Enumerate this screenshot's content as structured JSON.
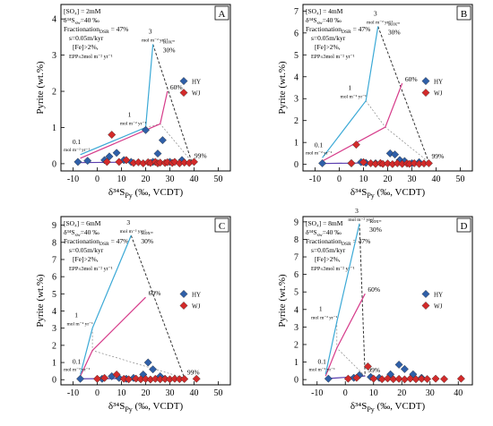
{
  "figure": {
    "ylabel": "Pyrite (wt.%)",
    "xlabel": "δ³⁴S",
    "xlabel_sub": "Py",
    "xlabel_unit": " (‰, VCDT)"
  },
  "colors": {
    "hy_marker": "#2f5fa8",
    "wj_marker": "#d32a2a",
    "cyan_line": "#3ba9d6",
    "magenta_line": "#d63b8a",
    "purple_line": "#5b3fb0",
    "dashed_line": "#333333",
    "label_box": "#000000"
  },
  "legend": [
    {
      "name": "HY",
      "color": "#2f5fa8"
    },
    {
      "name": "WJ",
      "color": "#d32a2a"
    }
  ],
  "chart_data": [
    {
      "panel": "A",
      "type": "scatter",
      "xlim": [
        -15,
        55
      ],
      "ylim": [
        -0.2,
        4.4
      ],
      "xticks": [
        -10,
        0,
        10,
        20,
        30,
        40,
        50
      ],
      "yticks": [
        0,
        1,
        2,
        3,
        4
      ],
      "params": [
        "[SO₄] = 2mM",
        "δ³⁴S",
        "sw",
        "=40 ‰",
        "Fractionation",
        "DSR",
        " = 47%",
        "s=0.05m/kyr",
        "[Fe]>2%,",
        "EPP≤3mol m⁻² yr⁻¹"
      ],
      "annotations": {
        "rate_hi": "3",
        "rate_mid": "1",
        "rate_lo": "0.1",
        "rate_unit": "mol m⁻² yr⁻¹",
        "rox_label": "Rox=",
        "rox_30": "30%",
        "rox_60": "60%",
        "rox_99": "99%"
      },
      "model_curves": {
        "cyan": [
          [
            -7,
            0.25
          ],
          [
            20,
            1.0
          ],
          [
            23,
            3.3
          ]
        ],
        "magenta": [
          [
            -7,
            0.15
          ],
          [
            26,
            1.1
          ],
          [
            29,
            2.0
          ]
        ],
        "purple": [
          [
            -7,
            0.03
          ],
          [
            39,
            0.06
          ]
        ],
        "dashed": [
          [
            23,
            3.3
          ],
          [
            39,
            0.06
          ]
        ]
      },
      "series": [
        {
          "name": "HY",
          "points": [
            [
              -8,
              0.05
            ],
            [
              -4,
              0.08
            ],
            [
              3,
              0.1
            ],
            [
              5,
              0.2
            ],
            [
              8,
              0.3
            ],
            [
              11,
              0.1
            ],
            [
              14,
              0.05
            ],
            [
              20,
              0.93
            ],
            [
              23,
              0.05
            ],
            [
              25,
              0.28
            ],
            [
              27,
              0.65
            ],
            [
              30,
              0.05
            ],
            [
              35,
              0.1
            ]
          ]
        },
        {
          "name": "WJ",
          "points": [
            [
              4,
              0.05
            ],
            [
              6,
              0.8
            ],
            [
              9,
              0.05
            ],
            [
              12,
              0.1
            ],
            [
              15,
              0.02
            ],
            [
              17,
              0.04
            ],
            [
              19,
              0.01
            ],
            [
              21,
              0.04
            ],
            [
              22,
              0.02
            ],
            [
              24,
              0.05
            ],
            [
              25,
              0.01
            ],
            [
              26,
              0.03
            ],
            [
              28,
              0.02
            ],
            [
              29,
              0.04
            ],
            [
              31,
              0.02
            ],
            [
              32,
              0.05
            ],
            [
              34,
              0.01
            ],
            [
              36,
              0.03
            ],
            [
              38,
              0.02
            ],
            [
              40,
              0.05
            ]
          ]
        }
      ]
    },
    {
      "panel": "B",
      "type": "scatter",
      "xlim": [
        -15,
        55
      ],
      "ylim": [
        -0.3,
        7.3
      ],
      "xticks": [
        -10,
        0,
        10,
        20,
        30,
        40,
        50
      ],
      "yticks": [
        0,
        1,
        2,
        3,
        4,
        5,
        6,
        7
      ],
      "params": [
        "[SO₄] = 4mM",
        "δ³⁴S",
        "sw",
        "=40 ‰",
        "Fractionation",
        "DSR",
        " = 47%",
        "s=0.05m/kyr",
        "[Fe]>2%,",
        "EPP≤3mol m⁻² yr⁻¹"
      ],
      "annotations": {
        "rate_hi": "3",
        "rate_mid": "1",
        "rate_lo": "0.1",
        "rate_unit": "mol m⁻² yr⁻¹",
        "rox_label": "Rox=",
        "rox_30": "30%",
        "rox_60": "60%",
        "rox_99": "99%"
      },
      "model_curves": {
        "cyan": [
          [
            -7,
            0.3
          ],
          [
            11,
            2.9
          ],
          [
            16,
            6.3
          ]
        ],
        "magenta": [
          [
            -7,
            0.15
          ],
          [
            19,
            1.7
          ],
          [
            26,
            3.7
          ]
        ],
        "purple": [
          [
            -7,
            0.04
          ],
          [
            37,
            0.1
          ]
        ],
        "dashed": [
          [
            16,
            6.3
          ],
          [
            37,
            0.1
          ]
        ]
      },
      "series": [
        {
          "name": "HY",
          "points": [
            [
              -7,
              0.05
            ],
            [
              5,
              0.05
            ],
            [
              9,
              0.1
            ],
            [
              11,
              0.07
            ],
            [
              15,
              0.05
            ],
            [
              21,
              0.5
            ],
            [
              23,
              0.45
            ],
            [
              25,
              0.2
            ],
            [
              27,
              0.15
            ],
            [
              30,
              0.05
            ],
            [
              33,
              0.1
            ]
          ]
        },
        {
          "name": "WJ",
          "points": [
            [
              5,
              0.05
            ],
            [
              7,
              0.9
            ],
            [
              10,
              0.1
            ],
            [
              13,
              0.05
            ],
            [
              15,
              0.02
            ],
            [
              17,
              0.06
            ],
            [
              18,
              0.02
            ],
            [
              20,
              0.04
            ],
            [
              22,
              0.01
            ],
            [
              24,
              0.05
            ],
            [
              26,
              0.02
            ],
            [
              28,
              0.04
            ],
            [
              29,
              0.02
            ],
            [
              31,
              0.05
            ],
            [
              33,
              0.02
            ],
            [
              35,
              0.04
            ],
            [
              37,
              0.05
            ]
          ]
        }
      ]
    },
    {
      "panel": "C",
      "type": "scatter",
      "xlim": [
        -15,
        55
      ],
      "ylim": [
        -0.3,
        9.5
      ],
      "xticks": [
        -10,
        0,
        10,
        20,
        30,
        40,
        50
      ],
      "yticks": [
        0,
        1,
        2,
        3,
        4,
        5,
        6,
        7,
        8,
        9
      ],
      "params": [
        "[SO₄] = 6mM",
        "δ³⁴S",
        "sw",
        "=40 ‰",
        "Fractionation",
        "DSR",
        " = 47%",
        "s=0.05m/kyr",
        "[Fe]>2%,",
        "EPP≤3mol m⁻² yr⁻¹"
      ],
      "annotations": {
        "rate_hi": "3",
        "rate_mid": "1",
        "rate_lo": "0.1",
        "rate_unit": "mol m⁻² yr⁻¹",
        "rox_label": "Rox=",
        "rox_30": "30%",
        "rox_60": "60%",
        "rox_99": "99%"
      },
      "model_curves": {
        "cyan": [
          [
            -7,
            0.3
          ],
          [
            -2,
            3.0
          ],
          [
            14,
            8.4
          ]
        ],
        "magenta": [
          [
            -7,
            0.2
          ],
          [
            -2,
            1.7
          ],
          [
            20,
            4.8
          ]
        ],
        "purple": [
          [
            -7,
            0.05
          ],
          [
            36,
            0.1
          ]
        ],
        "dashed": [
          [
            14,
            8.4
          ],
          [
            36,
            0.1
          ]
        ]
      },
      "series": [
        {
          "name": "HY",
          "points": [
            [
              -7,
              0.05
            ],
            [
              2,
              0.05
            ],
            [
              6,
              0.2
            ],
            [
              9,
              0.1
            ],
            [
              12,
              0.05
            ],
            [
              15,
              0.1
            ],
            [
              19,
              0.3
            ],
            [
              21,
              1.0
            ],
            [
              23,
              0.6
            ],
            [
              26,
              0.2
            ],
            [
              28,
              0.05
            ]
          ]
        },
        {
          "name": "WJ",
          "points": [
            [
              0,
              0.05
            ],
            [
              3,
              0.1
            ],
            [
              8,
              0.3
            ],
            [
              11,
              0.05
            ],
            [
              13,
              0.02
            ],
            [
              16,
              0.06
            ],
            [
              18,
              0.02
            ],
            [
              20,
              0.04
            ],
            [
              22,
              0.01
            ],
            [
              24,
              0.05
            ],
            [
              26,
              0.02
            ],
            [
              28,
              0.04
            ],
            [
              30,
              0.02
            ],
            [
              32,
              0.05
            ],
            [
              34,
              0.03
            ],
            [
              36,
              0.04
            ],
            [
              41,
              0.05
            ]
          ]
        }
      ]
    },
    {
      "panel": "D",
      "type": "scatter",
      "xlim": [
        -15,
        45
      ],
      "ylim": [
        -0.3,
        9.3
      ],
      "xticks": [
        -10,
        0,
        10,
        20,
        30,
        40
      ],
      "yticks": [
        0,
        1,
        2,
        3,
        4,
        5,
        6,
        7,
        8,
        9
      ],
      "params": [
        "[SO₄] = 8mM",
        "δ³⁴S",
        "sw",
        "=40 ‰",
        "Fractionation",
        "DSR",
        " = 47%",
        "s=0.05m/kyr",
        "[Fe]>2%,",
        "EPP≤3mol m⁻² yr⁻¹"
      ],
      "annotations": {
        "rate_hi": "3",
        "rate_mid": "1",
        "rate_lo": "0.1",
        "rate_unit": "mol m⁻² yr⁻¹",
        "rox_label": "Rox=",
        "rox_30": "30%",
        "rox_60": "60%",
        "rox_99": "99%"
      },
      "model_curves": {
        "cyan": [
          [
            -7,
            0.3
          ],
          [
            -3,
            3.3
          ],
          [
            5,
            8.9
          ]
        ],
        "magenta": [
          [
            -7,
            0.2
          ],
          [
            -3,
            1.8
          ],
          [
            7,
            4.9
          ]
        ],
        "purple": [
          [
            -7,
            0.05
          ],
          [
            7,
            0.2
          ]
        ],
        "dashed": [
          [
            5,
            8.9
          ],
          [
            7,
            0.2
          ]
        ]
      },
      "series": [
        {
          "name": "HY",
          "points": [
            [
              -6,
              0.05
            ],
            [
              3,
              0.1
            ],
            [
              5,
              0.25
            ],
            [
              9,
              0.15
            ],
            [
              12,
              0.1
            ],
            [
              16,
              0.3
            ],
            [
              19,
              0.85
            ],
            [
              21,
              0.6
            ],
            [
              24,
              0.3
            ],
            [
              27,
              0.1
            ]
          ]
        },
        {
          "name": "WJ",
          "points": [
            [
              1,
              0.05
            ],
            [
              4,
              0.1
            ],
            [
              8,
              0.75
            ],
            [
              10,
              0.05
            ],
            [
              13,
              0.02
            ],
            [
              15,
              0.06
            ],
            [
              17,
              0.02
            ],
            [
              19,
              0.04
            ],
            [
              21,
              0.01
            ],
            [
              23,
              0.05
            ],
            [
              25,
              0.02
            ],
            [
              27,
              0.04
            ],
            [
              29,
              0.03
            ],
            [
              32,
              0.05
            ],
            [
              35,
              0.03
            ],
            [
              41,
              0.05
            ]
          ]
        }
      ]
    }
  ]
}
